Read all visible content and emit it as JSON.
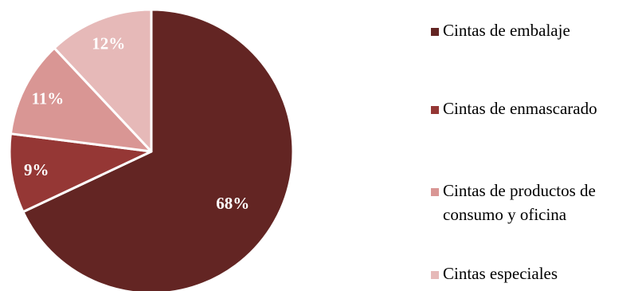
{
  "chart_data": {
    "type": "pie",
    "start": "12 o'clock",
    "direction": "clockwise",
    "legend_position": "right",
    "slices": [
      {
        "label": "Cintas de embalaje",
        "legend_lines": [
          "Cintas de embalaje"
        ],
        "value": 68,
        "value_label": "68%",
        "color": "#632523"
      },
      {
        "label": "Cintas de enmascarado",
        "legend_lines": [
          "Cintas de enmascarado"
        ],
        "value": 9,
        "value_label": "9%",
        "color": "#953735"
      },
      {
        "label": "Cintas de productos de consumo y oficina",
        "legend_lines": [
          "Cintas de productos de",
          "consumo y oficina"
        ],
        "value": 11,
        "value_label": "11%",
        "color": "#d99694"
      },
      {
        "label": "Cintas especiales",
        "legend_lines": [
          "Cintas especiales"
        ],
        "value": 12,
        "value_label": "12%",
        "color": "#e6b9b8"
      }
    ]
  }
}
